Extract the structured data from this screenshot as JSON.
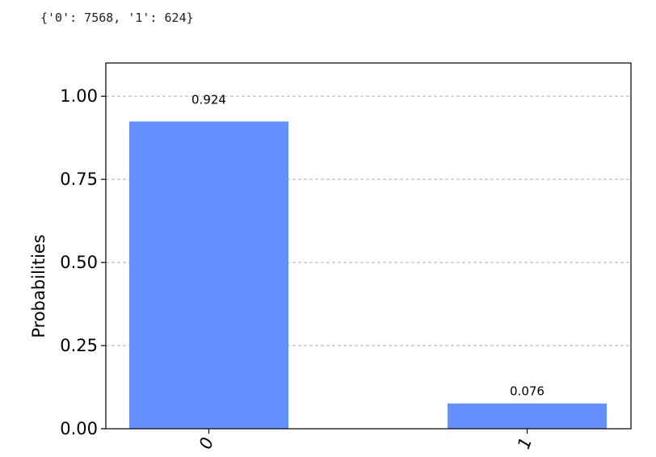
{
  "output_text": "{'0': 7568, '1': 624}",
  "chart_data": {
    "type": "bar",
    "categories": [
      "0",
      "1"
    ],
    "values": [
      0.924,
      0.076
    ],
    "data_labels": [
      "0.924",
      "0.076"
    ],
    "ylabel": "Probabilities",
    "xlabel": "",
    "ylim": [
      0,
      1.1
    ],
    "yticks": [
      0,
      0.25,
      0.5,
      0.75,
      1.0
    ],
    "ytick_labels": [
      "0.00",
      "0.25",
      "0.50",
      "0.75",
      "1.00"
    ],
    "grid": "horizontal dashed",
    "bar_color": "#648fff",
    "grid_color": "#b0b0b0"
  }
}
